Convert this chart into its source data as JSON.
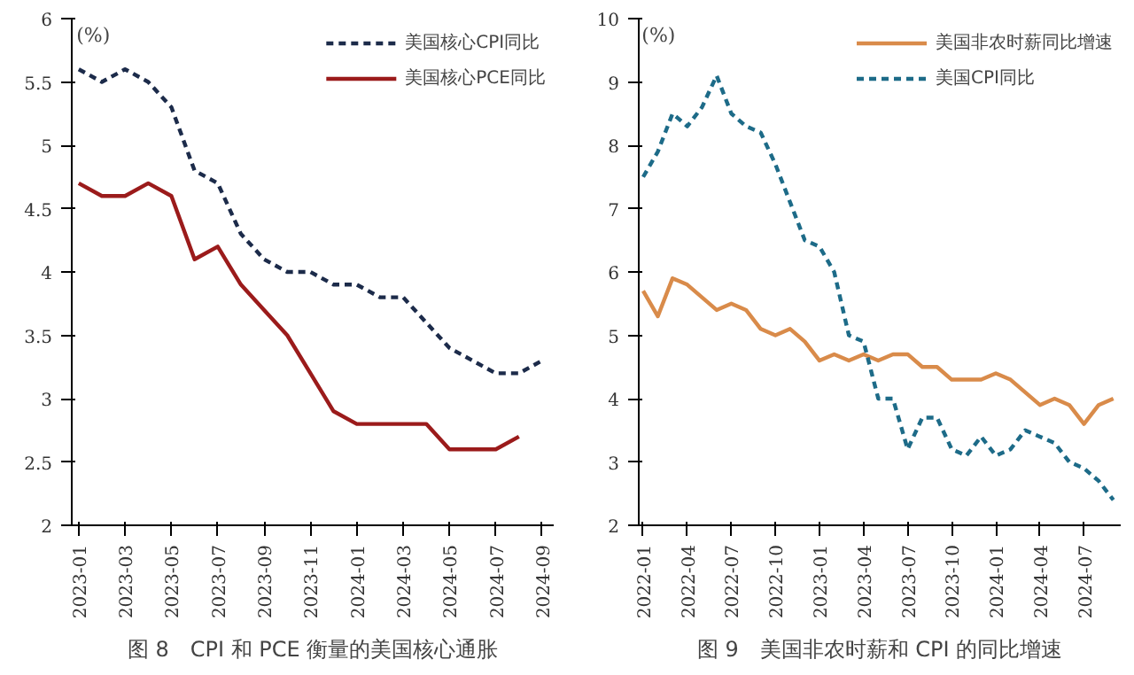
{
  "chart_data": [
    {
      "type": "line",
      "title": "图 8　CPI 和 PCE 衡量的美国核心通胀",
      "ylabel": "(%)",
      "categories": [
        "2023-01",
        null,
        "2023-03",
        null,
        "2023-05",
        null,
        "2023-07",
        null,
        "2023-09",
        null,
        "2023-11",
        null,
        "2024-01",
        null,
        "2024-03",
        null,
        "2024-05",
        null,
        "2024-07",
        null,
        "2024-09"
      ],
      "series": [
        {
          "name": "美国核心CPI同比",
          "color": "#1c2b4a",
          "line_style": "dashed",
          "values": [
            5.6,
            5.5,
            5.6,
            5.5,
            5.3,
            4.8,
            4.7,
            4.3,
            4.1,
            4.0,
            4.0,
            3.9,
            3.9,
            3.8,
            3.8,
            3.6,
            3.4,
            3.3,
            3.2,
            3.2,
            3.3
          ]
        },
        {
          "name": "美国核心PCE同比",
          "color": "#9b1b1b",
          "line_style": "solid",
          "values": [
            4.7,
            4.6,
            4.6,
            4.7,
            4.6,
            4.1,
            4.2,
            3.9,
            3.7,
            3.5,
            3.2,
            2.9,
            2.8,
            2.8,
            2.8,
            2.8,
            2.6,
            2.6,
            2.6,
            2.7,
            null
          ]
        }
      ],
      "ylim": [
        2,
        6
      ],
      "yticks": [
        2,
        2.5,
        3,
        3.5,
        4,
        4.5,
        5,
        5.5,
        6
      ],
      "grid": false,
      "legend": "top right",
      "marker": "none"
    },
    {
      "type": "line",
      "title": "图 9　美国非农时薪和 CPI 的同比增速",
      "ylabel": "(%)",
      "categories": [
        "2022-01",
        null,
        null,
        "2022-04",
        null,
        null,
        "2022-07",
        null,
        null,
        "2022-10",
        null,
        null,
        "2023-01",
        null,
        null,
        "2023-04",
        null,
        null,
        "2023-07",
        null,
        null,
        "2023-10",
        null,
        null,
        "2024-01",
        null,
        null,
        "2024-04",
        null,
        null,
        "2024-07",
        null,
        null
      ],
      "series": [
        {
          "name": "美国非农时薪同比增速",
          "color": "#d98b4a",
          "line_style": "solid",
          "values": [
            5.7,
            5.3,
            5.9,
            5.8,
            5.6,
            5.4,
            5.5,
            5.4,
            5.1,
            5.0,
            5.1,
            4.9,
            4.6,
            4.7,
            4.6,
            4.7,
            4.6,
            4.7,
            4.7,
            4.5,
            4.5,
            4.3,
            4.3,
            4.3,
            4.4,
            4.3,
            4.1,
            3.9,
            4.0,
            3.9,
            3.6,
            3.9,
            4.0
          ]
        },
        {
          "name": "美国CPI同比",
          "color": "#1d6b88",
          "line_style": "dashed",
          "values": [
            7.5,
            7.9,
            8.5,
            8.3,
            8.6,
            9.1,
            8.5,
            8.3,
            8.2,
            7.7,
            7.1,
            6.5,
            6.4,
            6.0,
            5.0,
            4.9,
            4.0,
            4.0,
            3.2,
            3.7,
            3.7,
            3.2,
            3.1,
            3.4,
            3.1,
            3.2,
            3.5,
            3.4,
            3.3,
            3.0,
            2.9,
            2.7,
            2.4
          ]
        }
      ],
      "ylim": [
        2,
        10
      ],
      "yticks": [
        2,
        3,
        4,
        5,
        6,
        7,
        8,
        9,
        10
      ],
      "grid": false,
      "legend": "top right",
      "marker": "none"
    }
  ]
}
